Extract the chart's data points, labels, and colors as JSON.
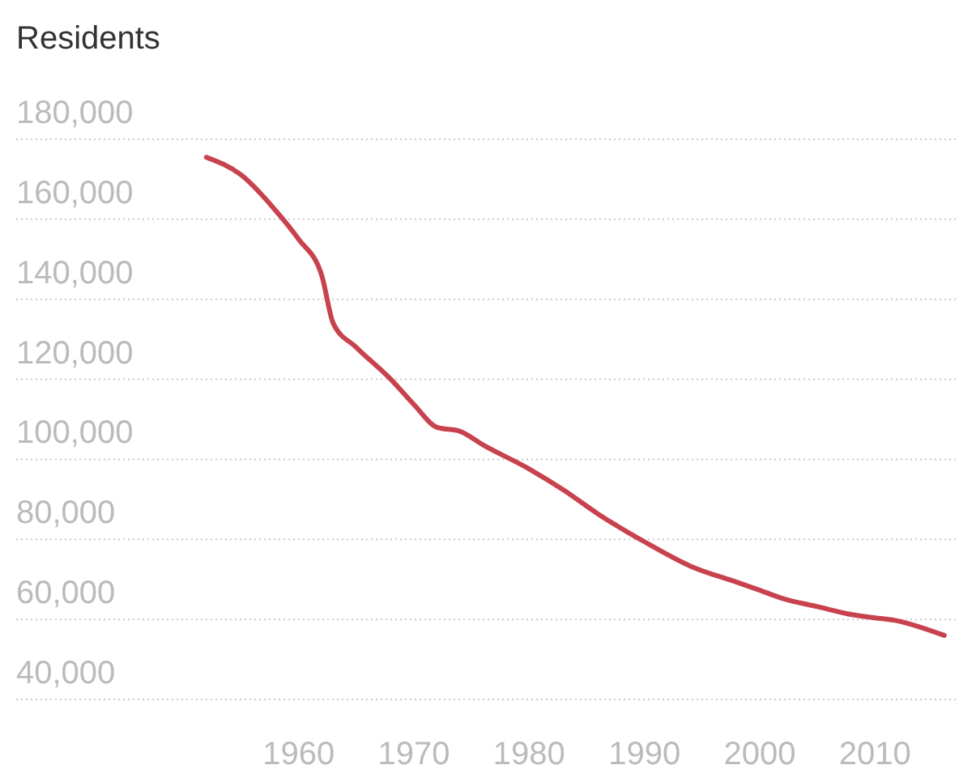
{
  "chart_data": {
    "type": "line",
    "ylabel": "Residents",
    "x": [
      1952,
      1955,
      1958,
      1960,
      1962,
      1963,
      1965,
      1968,
      1970,
      1972,
      1974,
      1976,
      1980,
      1983,
      1986,
      1990,
      1994,
      1998,
      2000,
      2002,
      2005,
      2008,
      2010,
      2012,
      2014,
      2016
    ],
    "series": [
      {
        "color": "#c8424e",
        "values": [
          175500,
          171100,
          162200,
          155000,
          146000,
          134000,
          128000,
          120000,
          113700,
          108000,
          107000,
          103600,
          97600,
          92300,
          86300,
          79400,
          73300,
          69300,
          67300,
          65200,
          63200,
          61200,
          60400,
          59600,
          58000,
          56000
        ]
      }
    ],
    "xlim": [
      1935.5,
      2017
    ],
    "xticks": [
      1960,
      1970,
      1980,
      1990,
      2000,
      2010
    ],
    "ylim": [
      40000,
      180000
    ],
    "yticks": [
      {
        "value": 40000,
        "label": "40,000"
      },
      {
        "value": 60000,
        "label": "60,000"
      },
      {
        "value": 80000,
        "label": "80,000"
      },
      {
        "value": 100000,
        "label": "100,000"
      },
      {
        "value": 120000,
        "label": "120,000"
      },
      {
        "value": 140000,
        "label": "140,000"
      },
      {
        "value": 160000,
        "label": "160,000"
      },
      {
        "value": 180000,
        "label": "180,000"
      }
    ],
    "grid": "y",
    "line_style": "solid"
  }
}
